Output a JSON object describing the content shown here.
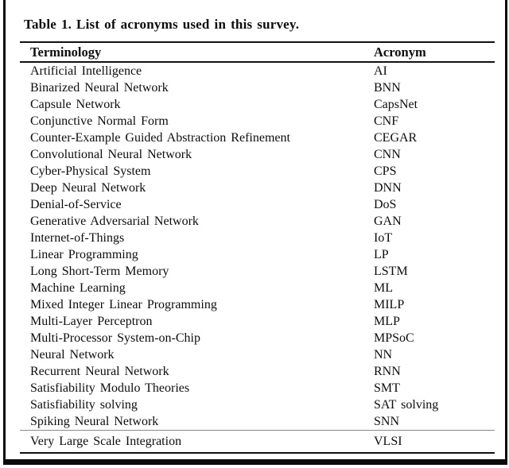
{
  "table": {
    "caption": "Table 1. List of acronyms used in this survey.",
    "columns": [
      "Terminology",
      "Acronym"
    ],
    "rows": [
      [
        "Artificial Intelligence",
        "AI"
      ],
      [
        "Binarized Neural Network",
        "BNN"
      ],
      [
        "Capsule Network",
        "CapsNet"
      ],
      [
        "Conjunctive Normal Form",
        "CNF"
      ],
      [
        "Counter-Example Guided Abstraction Refinement",
        "CEGAR"
      ],
      [
        "Convolutional Neural Network",
        "CNN"
      ],
      [
        "Cyber-Physical System",
        "CPS"
      ],
      [
        "Deep Neural Network",
        "DNN"
      ],
      [
        "Denial-of-Service",
        "DoS"
      ],
      [
        "Generative Adversarial Network",
        "GAN"
      ],
      [
        "Internet-of-Things",
        "IoT"
      ],
      [
        "Linear Programming",
        "LP"
      ],
      [
        "Long Short-Term Memory",
        "LSTM"
      ],
      [
        "Machine Learning",
        "ML"
      ],
      [
        "Mixed Integer Linear Programming",
        "MILP"
      ],
      [
        "Multi-Layer Perceptron",
        "MLP"
      ],
      [
        "Multi-Processor System-on-Chip",
        "MPSoC"
      ],
      [
        "Neural Network",
        "NN"
      ],
      [
        "Recurrent Neural Network",
        "RNN"
      ],
      [
        "Satisfiability Modulo Theories",
        "SMT"
      ],
      [
        "Satisfiability solving",
        "SAT solving"
      ],
      [
        "Spiking Neural Network",
        "SNN"
      ]
    ],
    "last_row": [
      "Very Large Scale Integration",
      "VLSI"
    ],
    "colors": {
      "text": "#0d0d0d",
      "rule": "#111111",
      "faint_rule": "#8a8a8a",
      "background": "#ffffff"
    }
  }
}
